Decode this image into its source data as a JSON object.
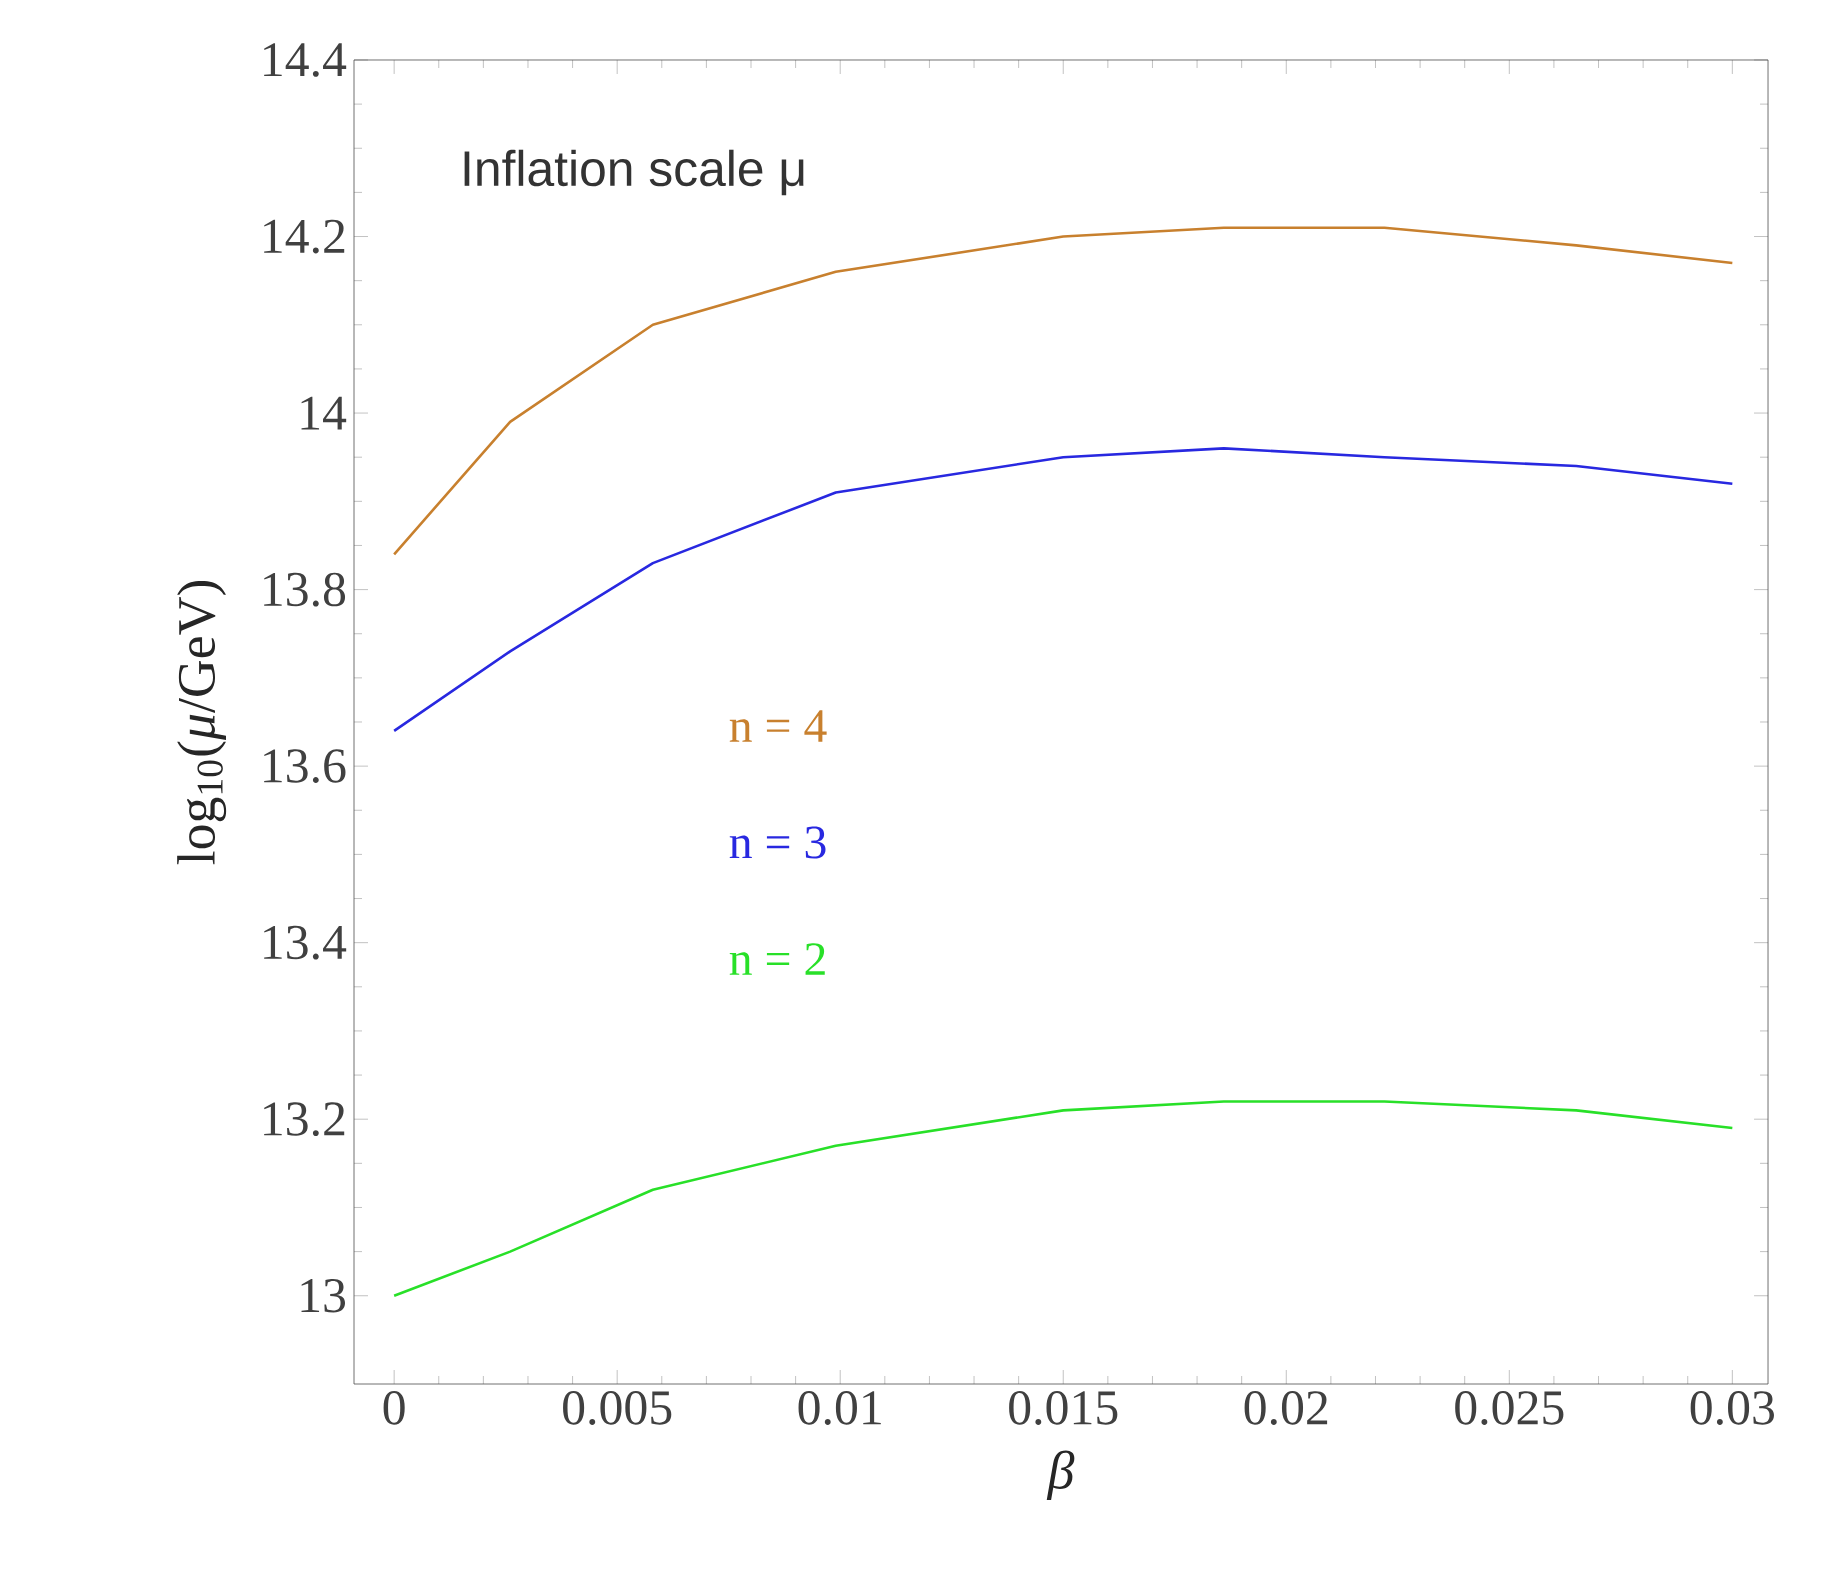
{
  "chart_data": {
    "type": "line",
    "title": "Inflation scale μ",
    "xlabel": "β",
    "ylabel": "log$_{10}$(*μ*/GeV)",
    "xlim": [
      -0.0009,
      0.0308
    ],
    "ylim": [
      12.9,
      14.4
    ],
    "xticks": [
      0,
      0.005,
      0.01,
      0.015,
      0.02,
      0.025,
      0.03
    ],
    "yticks": [
      13,
      13.2,
      13.4,
      13.6,
      13.8,
      14,
      14.2,
      14.4
    ],
    "grid": false,
    "marker": "none",
    "line_style": "solid",
    "x": [
      0,
      0.0026,
      0.0058,
      0.0099,
      0.015,
      0.0186,
      0.0222,
      0.0265,
      0.03
    ],
    "series": [
      {
        "name": "n = 4",
        "color": "#c8802e",
        "values": [
          13.84,
          13.99,
          14.1,
          14.16,
          14.2,
          14.21,
          14.21,
          14.19,
          14.17
        ]
      },
      {
        "name": "n = 3",
        "color": "#2828e0",
        "values": [
          13.64,
          13.73,
          13.83,
          13.91,
          13.95,
          13.96,
          13.95,
          13.94,
          13.92
        ]
      },
      {
        "name": "n = 2",
        "color": "#28e028",
        "values": [
          13.0,
          13.05,
          13.12,
          13.17,
          13.21,
          13.22,
          13.22,
          13.21,
          13.19
        ]
      }
    ]
  }
}
